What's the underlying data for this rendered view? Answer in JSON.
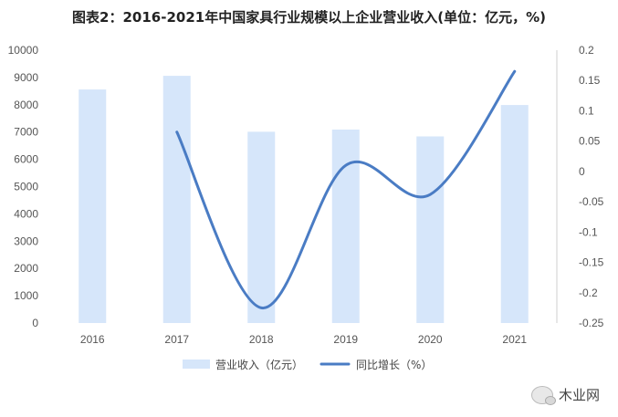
{
  "chart_data": {
    "type": "bar+line",
    "title": "图表2：2016-2021年中国家具行业规模以上企业营业收入(单位：亿元，%)",
    "categories": [
      "2016",
      "2017",
      "2018",
      "2019",
      "2020",
      "2021"
    ],
    "series": [
      {
        "name": "营业收入（亿元）",
        "type": "bar",
        "axis": "left",
        "color": "#d6e6fa",
        "values": [
          8560,
          9060,
          7010,
          7090,
          6840,
          7990
        ]
      },
      {
        "name": "同比增长（%）",
        "type": "line",
        "axis": "right",
        "color": "#4a7cc4",
        "values": [
          null,
          0.065,
          -0.225,
          0.01,
          -0.038,
          0.165
        ]
      }
    ],
    "y_left": {
      "min": 0,
      "max": 10000,
      "step": 1000,
      "ticks": [
        "0",
        "1000",
        "2000",
        "3000",
        "4000",
        "5000",
        "6000",
        "7000",
        "8000",
        "9000",
        "10000"
      ]
    },
    "y_right": {
      "min": -0.25,
      "max": 0.2,
      "step": 0.05,
      "ticks": [
        "-0.25",
        "-0.2",
        "-0.15",
        "-0.1",
        "-0.05",
        "0",
        "0.05",
        "0.1",
        "0.15",
        "0.2"
      ]
    },
    "legend_position": "bottom",
    "grid": false
  },
  "watermark": {
    "text": "木业网",
    "icon": "wechat-icon"
  }
}
